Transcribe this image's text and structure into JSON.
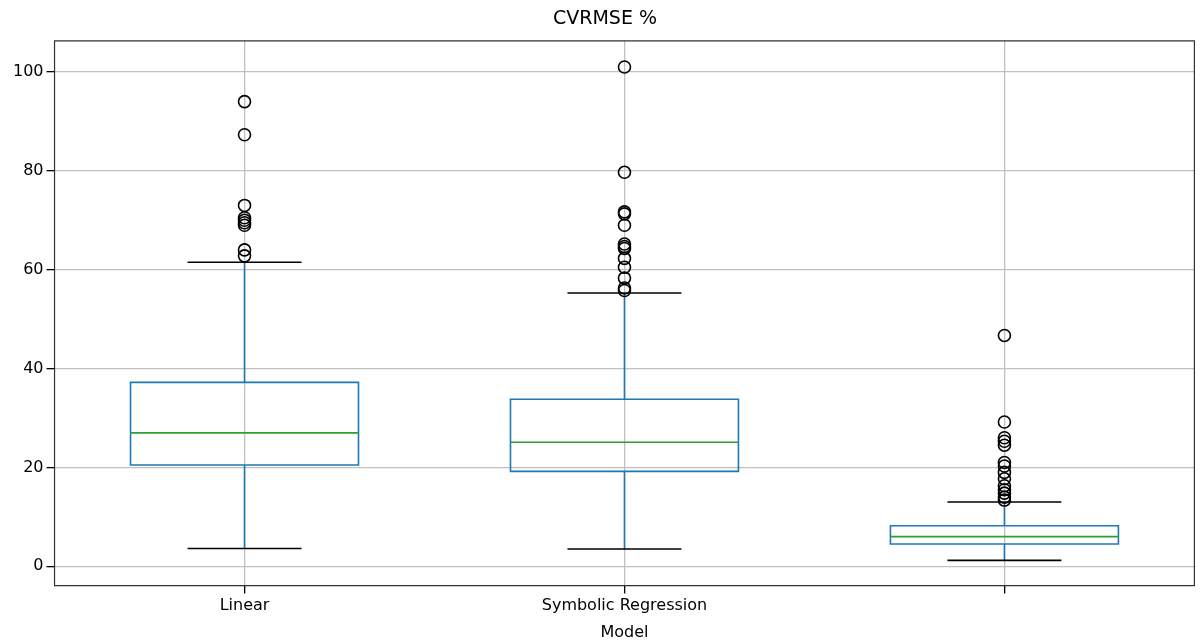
{
  "chart_data": {
    "type": "box",
    "title": "CVRMSE %",
    "xlabel": "Model",
    "categories": [
      "Linear",
      "Symbolic Regression",
      null
    ],
    "ylim": [
      -3.9,
      106.3
    ],
    "yticks": [
      0,
      20,
      40,
      60,
      80,
      100
    ],
    "grid": true,
    "legend": false,
    "marker": "circle",
    "series": [
      {
        "color": "#1f77b4",
        "boxes": [
          {
            "low": 3.6,
            "q1": 20.5,
            "median": 27,
            "q3": 37.2,
            "high": 61.5,
            "outliers": [
              94,
              87.3,
              73,
              70.5,
              70,
              69.5,
              69,
              64,
              62.8
            ]
          },
          {
            "low": 3.5,
            "q1": 19.2,
            "median": 25.1,
            "q3": 33.8,
            "high": 55.3,
            "outliers": [
              101,
              79.7,
              71.7,
              71.3,
              69,
              65.2,
              64.7,
              64.3,
              62.3,
              60.5,
              58.3,
              56.3,
              55.8
            ]
          },
          {
            "low": 1.2,
            "q1": 4.5,
            "median": 6,
            "q3": 8.2,
            "high": 13,
            "outliers": [
              46.7,
              29.2,
              26,
              25.3,
              24.5,
              21,
              20.3,
              19,
              17.7,
              16.3,
              15.5,
              14.8,
              14,
              13.4
            ]
          }
        ]
      }
    ]
  }
}
